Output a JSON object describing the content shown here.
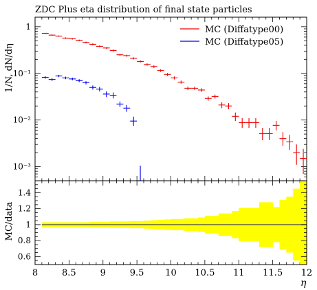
{
  "chart_data": [
    {
      "type": "scatter",
      "title": "ZDC Plus eta distribution of final state particles",
      "xlabel": "η",
      "ylabel": "1/N, dN/dη",
      "yscale": "log",
      "xlim": [
        8,
        12
      ],
      "ylim": [
        0.0005,
        1.6
      ],
      "y_ticks": [
        {
          "value": 1,
          "label": "1"
        },
        {
          "value": 0.1,
          "label": "10⁻¹"
        },
        {
          "value": 0.01,
          "label": "10⁻²"
        },
        {
          "value": 0.001,
          "label": "10⁻³"
        }
      ],
      "legend": "top-right",
      "series": [
        {
          "name": "MC (Diffatype00)",
          "color": "#ee0000",
          "points": [
            {
              "x": 8.15,
              "y": 0.72,
              "xerr": 0.05,
              "ylo": 0.7,
              "yhi": 0.74
            },
            {
              "x": 8.25,
              "y": 0.66,
              "xerr": 0.05,
              "ylo": 0.64,
              "yhi": 0.68
            },
            {
              "x": 8.35,
              "y": 0.63,
              "xerr": 0.05,
              "ylo": 0.61,
              "yhi": 0.65
            },
            {
              "x": 8.45,
              "y": 0.57,
              "xerr": 0.05,
              "ylo": 0.55,
              "yhi": 0.59
            },
            {
              "x": 8.55,
              "y": 0.55,
              "xerr": 0.05,
              "ylo": 0.53,
              "yhi": 0.57
            },
            {
              "x": 8.65,
              "y": 0.51,
              "xerr": 0.05,
              "ylo": 0.49,
              "yhi": 0.53
            },
            {
              "x": 8.75,
              "y": 0.46,
              "xerr": 0.05,
              "ylo": 0.44,
              "yhi": 0.48
            },
            {
              "x": 8.85,
              "y": 0.42,
              "xerr": 0.05,
              "ylo": 0.4,
              "yhi": 0.44
            },
            {
              "x": 8.95,
              "y": 0.38,
              "xerr": 0.05,
              "ylo": 0.365,
              "yhi": 0.395
            },
            {
              "x": 9.05,
              "y": 0.35,
              "xerr": 0.05,
              "ylo": 0.335,
              "yhi": 0.365
            },
            {
              "x": 9.15,
              "y": 0.31,
              "xerr": 0.05,
              "ylo": 0.295,
              "yhi": 0.325
            },
            {
              "x": 9.25,
              "y": 0.25,
              "xerr": 0.05,
              "ylo": 0.238,
              "yhi": 0.262
            },
            {
              "x": 9.35,
              "y": 0.24,
              "xerr": 0.05,
              "ylo": 0.228,
              "yhi": 0.252
            },
            {
              "x": 9.45,
              "y": 0.21,
              "xerr": 0.05,
              "ylo": 0.199,
              "yhi": 0.221
            },
            {
              "x": 9.55,
              "y": 0.18,
              "xerr": 0.05,
              "ylo": 0.17,
              "yhi": 0.19
            },
            {
              "x": 9.65,
              "y": 0.155,
              "xerr": 0.05,
              "ylo": 0.146,
              "yhi": 0.164
            },
            {
              "x": 9.75,
              "y": 0.14,
              "xerr": 0.05,
              "ylo": 0.131,
              "yhi": 0.149
            },
            {
              "x": 9.85,
              "y": 0.115,
              "xerr": 0.05,
              "ylo": 0.107,
              "yhi": 0.123
            },
            {
              "x": 9.95,
              "y": 0.095,
              "xerr": 0.05,
              "ylo": 0.088,
              "yhi": 0.102
            },
            {
              "x": 10.05,
              "y": 0.08,
              "xerr": 0.05,
              "ylo": 0.074,
              "yhi": 0.086
            },
            {
              "x": 10.15,
              "y": 0.065,
              "xerr": 0.05,
              "ylo": 0.06,
              "yhi": 0.07
            },
            {
              "x": 10.25,
              "y": 0.048,
              "xerr": 0.05,
              "ylo": 0.044,
              "yhi": 0.052
            },
            {
              "x": 10.35,
              "y": 0.048,
              "xerr": 0.05,
              "ylo": 0.044,
              "yhi": 0.052
            },
            {
              "x": 10.45,
              "y": 0.044,
              "xerr": 0.05,
              "ylo": 0.04,
              "yhi": 0.048
            },
            {
              "x": 10.55,
              "y": 0.029,
              "xerr": 0.05,
              "ylo": 0.026,
              "yhi": 0.032
            },
            {
              "x": 10.65,
              "y": 0.032,
              "xerr": 0.05,
              "ylo": 0.029,
              "yhi": 0.035
            },
            {
              "x": 10.75,
              "y": 0.021,
              "xerr": 0.05,
              "ylo": 0.018,
              "yhi": 0.024
            },
            {
              "x": 10.85,
              "y": 0.02,
              "xerr": 0.05,
              "ylo": 0.017,
              "yhi": 0.023
            },
            {
              "x": 10.95,
              "y": 0.012,
              "xerr": 0.05,
              "ylo": 0.0095,
              "yhi": 0.0145
            },
            {
              "x": 11.05,
              "y": 0.0088,
              "xerr": 0.05,
              "ylo": 0.0068,
              "yhi": 0.011
            },
            {
              "x": 11.15,
              "y": 0.0088,
              "xerr": 0.05,
              "ylo": 0.0068,
              "yhi": 0.011
            },
            {
              "x": 11.25,
              "y": 0.0088,
              "xerr": 0.05,
              "ylo": 0.0068,
              "yhi": 0.011
            },
            {
              "x": 11.35,
              "y": 0.0051,
              "xerr": 0.05,
              "ylo": 0.0037,
              "yhi": 0.0068
            },
            {
              "x": 11.45,
              "y": 0.0051,
              "xerr": 0.05,
              "ylo": 0.0037,
              "yhi": 0.0068
            },
            {
              "x": 11.55,
              "y": 0.0077,
              "xerr": 0.05,
              "ylo": 0.006,
              "yhi": 0.0096
            },
            {
              "x": 11.65,
              "y": 0.004,
              "xerr": 0.05,
              "ylo": 0.0028,
              "yhi": 0.0055
            },
            {
              "x": 11.75,
              "y": 0.0034,
              "xerr": 0.05,
              "ylo": 0.0023,
              "yhi": 0.0048
            },
            {
              "x": 11.85,
              "y": 0.002,
              "xerr": 0.05,
              "ylo": 0.0011,
              "yhi": 0.003
            },
            {
              "x": 11.95,
              "y": 0.0015,
              "xerr": 0.05,
              "ylo": 0.0007,
              "yhi": 0.0024
            }
          ]
        },
        {
          "name": "MC (Diffatype05)",
          "color": "#0000ee",
          "points": [
            {
              "x": 8.15,
              "y": 0.082,
              "xerr": 0.05,
              "ylo": 0.077,
              "yhi": 0.087
            },
            {
              "x": 8.25,
              "y": 0.074,
              "xerr": 0.05,
              "ylo": 0.069,
              "yhi": 0.079
            },
            {
              "x": 8.35,
              "y": 0.088,
              "xerr": 0.05,
              "ylo": 0.083,
              "yhi": 0.093
            },
            {
              "x": 8.45,
              "y": 0.08,
              "xerr": 0.05,
              "ylo": 0.075,
              "yhi": 0.085
            },
            {
              "x": 8.55,
              "y": 0.076,
              "xerr": 0.05,
              "ylo": 0.071,
              "yhi": 0.081
            },
            {
              "x": 8.65,
              "y": 0.07,
              "xerr": 0.05,
              "ylo": 0.065,
              "yhi": 0.075
            },
            {
              "x": 8.75,
              "y": 0.063,
              "xerr": 0.05,
              "ylo": 0.058,
              "yhi": 0.068
            },
            {
              "x": 8.85,
              "y": 0.05,
              "xerr": 0.05,
              "ylo": 0.045,
              "yhi": 0.055
            },
            {
              "x": 8.95,
              "y": 0.046,
              "xerr": 0.05,
              "ylo": 0.041,
              "yhi": 0.051
            },
            {
              "x": 9.05,
              "y": 0.036,
              "xerr": 0.05,
              "ylo": 0.031,
              "yhi": 0.041
            },
            {
              "x": 9.15,
              "y": 0.034,
              "xerr": 0.05,
              "ylo": 0.029,
              "yhi": 0.039
            },
            {
              "x": 9.25,
              "y": 0.022,
              "xerr": 0.05,
              "ylo": 0.019,
              "yhi": 0.025
            },
            {
              "x": 9.35,
              "y": 0.018,
              "xerr": 0.05,
              "ylo": 0.015,
              "yhi": 0.021
            },
            {
              "x": 9.45,
              "y": 0.0095,
              "xerr": 0.05,
              "ylo": 0.0075,
              "yhi": 0.0118
            },
            {
              "x": 9.55,
              "y": 0.0005,
              "xerr": 0.05,
              "ylo": 0.0005,
              "yhi": 0.00105
            }
          ]
        }
      ]
    },
    {
      "type": "area",
      "ylabel": "MC/data",
      "xlabel": "η",
      "xlim": [
        8,
        12
      ],
      "ylim": [
        0.5,
        1.55
      ],
      "x_ticks": [
        8,
        8.5,
        9,
        9.5,
        10,
        10.5,
        11,
        11.5,
        12
      ],
      "y_ticks": [
        0.6,
        0.8,
        1,
        1.2,
        1.4
      ],
      "reference_line": 1,
      "band_color": "#ffff00",
      "band": [
        {
          "x0": 8.1,
          "x1": 8.2,
          "lo": 0.97,
          "hi": 1.03
        },
        {
          "x0": 8.2,
          "x1": 8.3,
          "lo": 0.97,
          "hi": 1.03
        },
        {
          "x0": 8.3,
          "x1": 8.4,
          "lo": 0.97,
          "hi": 1.03
        },
        {
          "x0": 8.4,
          "x1": 8.5,
          "lo": 0.97,
          "hi": 1.03
        },
        {
          "x0": 8.5,
          "x1": 8.6,
          "lo": 0.97,
          "hi": 1.03
        },
        {
          "x0": 8.6,
          "x1": 8.7,
          "lo": 0.97,
          "hi": 1.03
        },
        {
          "x0": 8.7,
          "x1": 8.8,
          "lo": 0.97,
          "hi": 1.03
        },
        {
          "x0": 8.8,
          "x1": 8.9,
          "lo": 0.965,
          "hi": 1.035
        },
        {
          "x0": 8.9,
          "x1": 9.0,
          "lo": 0.965,
          "hi": 1.035
        },
        {
          "x0": 9.0,
          "x1": 9.1,
          "lo": 0.965,
          "hi": 1.035
        },
        {
          "x0": 9.1,
          "x1": 9.2,
          "lo": 0.96,
          "hi": 1.04
        },
        {
          "x0": 9.2,
          "x1": 9.3,
          "lo": 0.96,
          "hi": 1.04
        },
        {
          "x0": 9.3,
          "x1": 9.4,
          "lo": 0.96,
          "hi": 1.04
        },
        {
          "x0": 9.4,
          "x1": 9.5,
          "lo": 0.955,
          "hi": 1.045
        },
        {
          "x0": 9.5,
          "x1": 9.6,
          "lo": 0.955,
          "hi": 1.045
        },
        {
          "x0": 9.6,
          "x1": 9.7,
          "lo": 0.95,
          "hi": 1.05
        },
        {
          "x0": 9.7,
          "x1": 9.8,
          "lo": 0.945,
          "hi": 1.055
        },
        {
          "x0": 9.8,
          "x1": 9.9,
          "lo": 0.94,
          "hi": 1.06
        },
        {
          "x0": 9.9,
          "x1": 10.0,
          "lo": 0.935,
          "hi": 1.065
        },
        {
          "x0": 10.0,
          "x1": 10.1,
          "lo": 0.93,
          "hi": 1.07
        },
        {
          "x0": 10.1,
          "x1": 10.2,
          "lo": 0.93,
          "hi": 1.07
        },
        {
          "x0": 10.2,
          "x1": 10.3,
          "lo": 0.92,
          "hi": 1.08
        },
        {
          "x0": 10.3,
          "x1": 10.4,
          "lo": 0.92,
          "hi": 1.08
        },
        {
          "x0": 10.4,
          "x1": 10.5,
          "lo": 0.91,
          "hi": 1.09
        },
        {
          "x0": 10.5,
          "x1": 10.6,
          "lo": 0.89,
          "hi": 1.11
        },
        {
          "x0": 10.6,
          "x1": 10.7,
          "lo": 0.89,
          "hi": 1.11
        },
        {
          "x0": 10.7,
          "x1": 10.8,
          "lo": 0.86,
          "hi": 1.14
        },
        {
          "x0": 10.8,
          "x1": 10.9,
          "lo": 0.86,
          "hi": 1.14
        },
        {
          "x0": 10.9,
          "x1": 11.0,
          "lo": 0.83,
          "hi": 1.17
        },
        {
          "x0": 11.0,
          "x1": 11.1,
          "lo": 0.79,
          "hi": 1.21
        },
        {
          "x0": 11.1,
          "x1": 11.2,
          "lo": 0.79,
          "hi": 1.21
        },
        {
          "x0": 11.2,
          "x1": 11.3,
          "lo": 0.79,
          "hi": 1.21
        },
        {
          "x0": 11.3,
          "x1": 11.4,
          "lo": 0.72,
          "hi": 1.28
        },
        {
          "x0": 11.4,
          "x1": 11.5,
          "lo": 0.72,
          "hi": 1.28
        },
        {
          "x0": 11.5,
          "x1": 11.6,
          "lo": 0.78,
          "hi": 1.22
        },
        {
          "x0": 11.6,
          "x1": 11.7,
          "lo": 0.69,
          "hi": 1.31
        },
        {
          "x0": 11.7,
          "x1": 11.8,
          "lo": 0.65,
          "hi": 1.35
        },
        {
          "x0": 11.8,
          "x1": 11.9,
          "lo": 0.55,
          "hi": 1.45
        },
        {
          "x0": 11.9,
          "x1": 12.0,
          "lo": 0.5,
          "hi": 1.55
        }
      ]
    }
  ]
}
